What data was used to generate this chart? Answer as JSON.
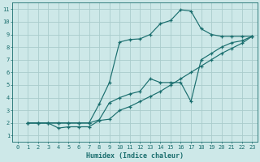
{
  "background_color": "#cde8e8",
  "grid_color": "#aacccc",
  "line_color": "#1a6e6e",
  "xlabel": "Humidex (Indice chaleur)",
  "xlim": [
    -0.5,
    23.5
  ],
  "ylim": [
    0.5,
    11.5
  ],
  "xticks": [
    0,
    1,
    2,
    3,
    4,
    5,
    6,
    7,
    8,
    9,
    10,
    11,
    12,
    13,
    14,
    15,
    16,
    17,
    18,
    19,
    20,
    21,
    22,
    23
  ],
  "yticks": [
    1,
    2,
    3,
    4,
    5,
    6,
    7,
    8,
    9,
    10,
    11
  ],
  "line_peak_x": [
    1,
    2,
    3,
    4,
    5,
    6,
    7,
    8,
    9,
    10,
    11,
    12,
    13,
    14,
    15,
    16,
    17,
    18,
    19,
    20,
    21,
    22,
    23
  ],
  "line_peak_y": [
    2.0,
    2.0,
    2.0,
    2.0,
    2.0,
    2.0,
    2.0,
    3.5,
    5.2,
    8.4,
    8.6,
    8.65,
    9.0,
    9.85,
    10.1,
    10.95,
    10.85,
    9.45,
    9.0,
    8.85,
    8.85,
    8.85,
    8.85
  ],
  "line_mid_x": [
    1,
    2,
    3,
    4,
    5,
    6,
    7,
    8,
    9,
    10,
    11,
    12,
    13,
    14,
    15,
    16,
    17,
    18,
    19,
    20,
    21,
    22,
    23
  ],
  "line_mid_y": [
    2.0,
    2.0,
    2.0,
    2.0,
    2.0,
    2.0,
    2.0,
    2.25,
    3.6,
    4.0,
    4.3,
    4.5,
    5.5,
    5.2,
    5.2,
    5.2,
    3.7,
    7.0,
    7.5,
    8.0,
    8.35,
    8.5,
    8.85
  ],
  "line_low_x": [
    1,
    2,
    3,
    4,
    5,
    6,
    7,
    8,
    9,
    10,
    11,
    12,
    13,
    14,
    15,
    16,
    17,
    18,
    19,
    20,
    21,
    22,
    23
  ],
  "line_low_y": [
    2.0,
    2.0,
    2.0,
    1.6,
    1.7,
    1.7,
    1.7,
    2.2,
    2.3,
    3.0,
    3.3,
    3.7,
    4.1,
    4.5,
    5.0,
    5.5,
    6.0,
    6.5,
    7.0,
    7.5,
    7.9,
    8.3,
    8.85
  ]
}
